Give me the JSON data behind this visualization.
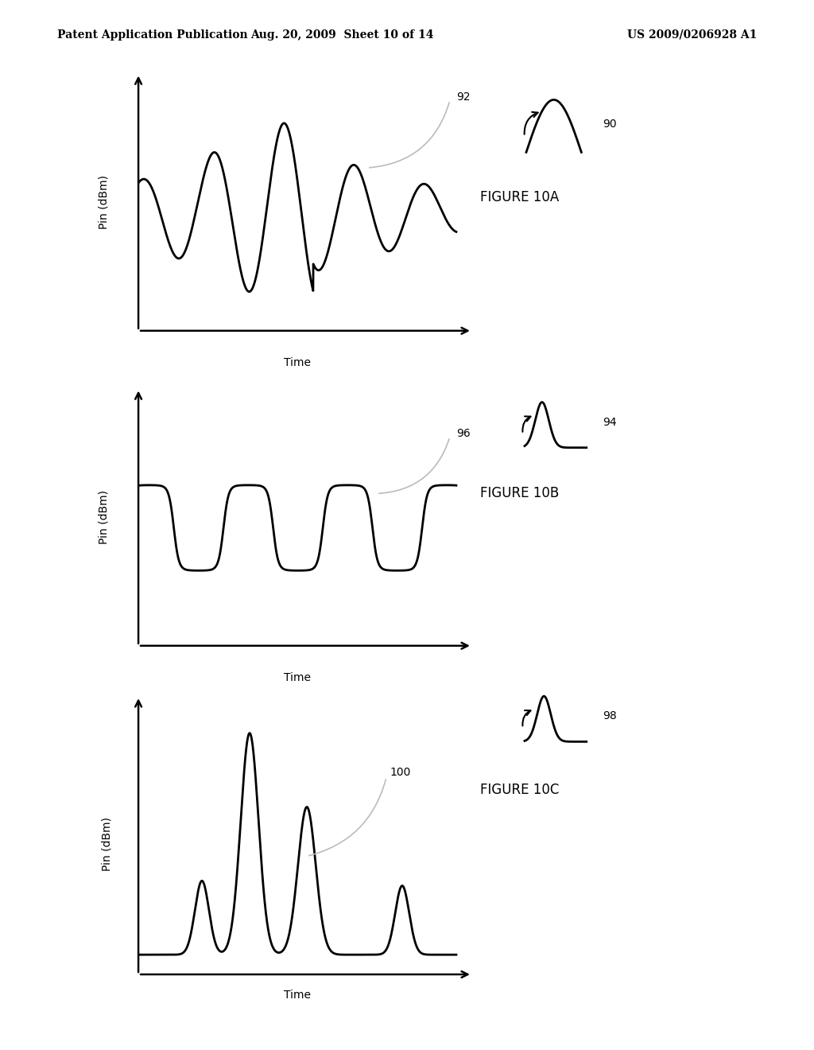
{
  "title_left": "Patent Application Publication",
  "title_mid": "Aug. 20, 2009  Sheet 10 of 14",
  "title_right": "US 2009/0206928 A1",
  "fig10a_label": "FIGURE 10A",
  "fig10b_label": "FIGURE 10B",
  "fig10c_label": "FIGURE 10C",
  "ylabel": "Pin (dBm)",
  "xlabel": "Time",
  "label_90": "90",
  "label_92": "92",
  "label_94": "94",
  "label_96": "96",
  "label_98": "98",
  "label_100": "100",
  "background_color": "#ffffff",
  "line_color": "#000000",
  "fontsize_header": 10,
  "fontsize_fig_label": 12,
  "fontsize_axis_label": 10,
  "fontsize_annot": 10
}
